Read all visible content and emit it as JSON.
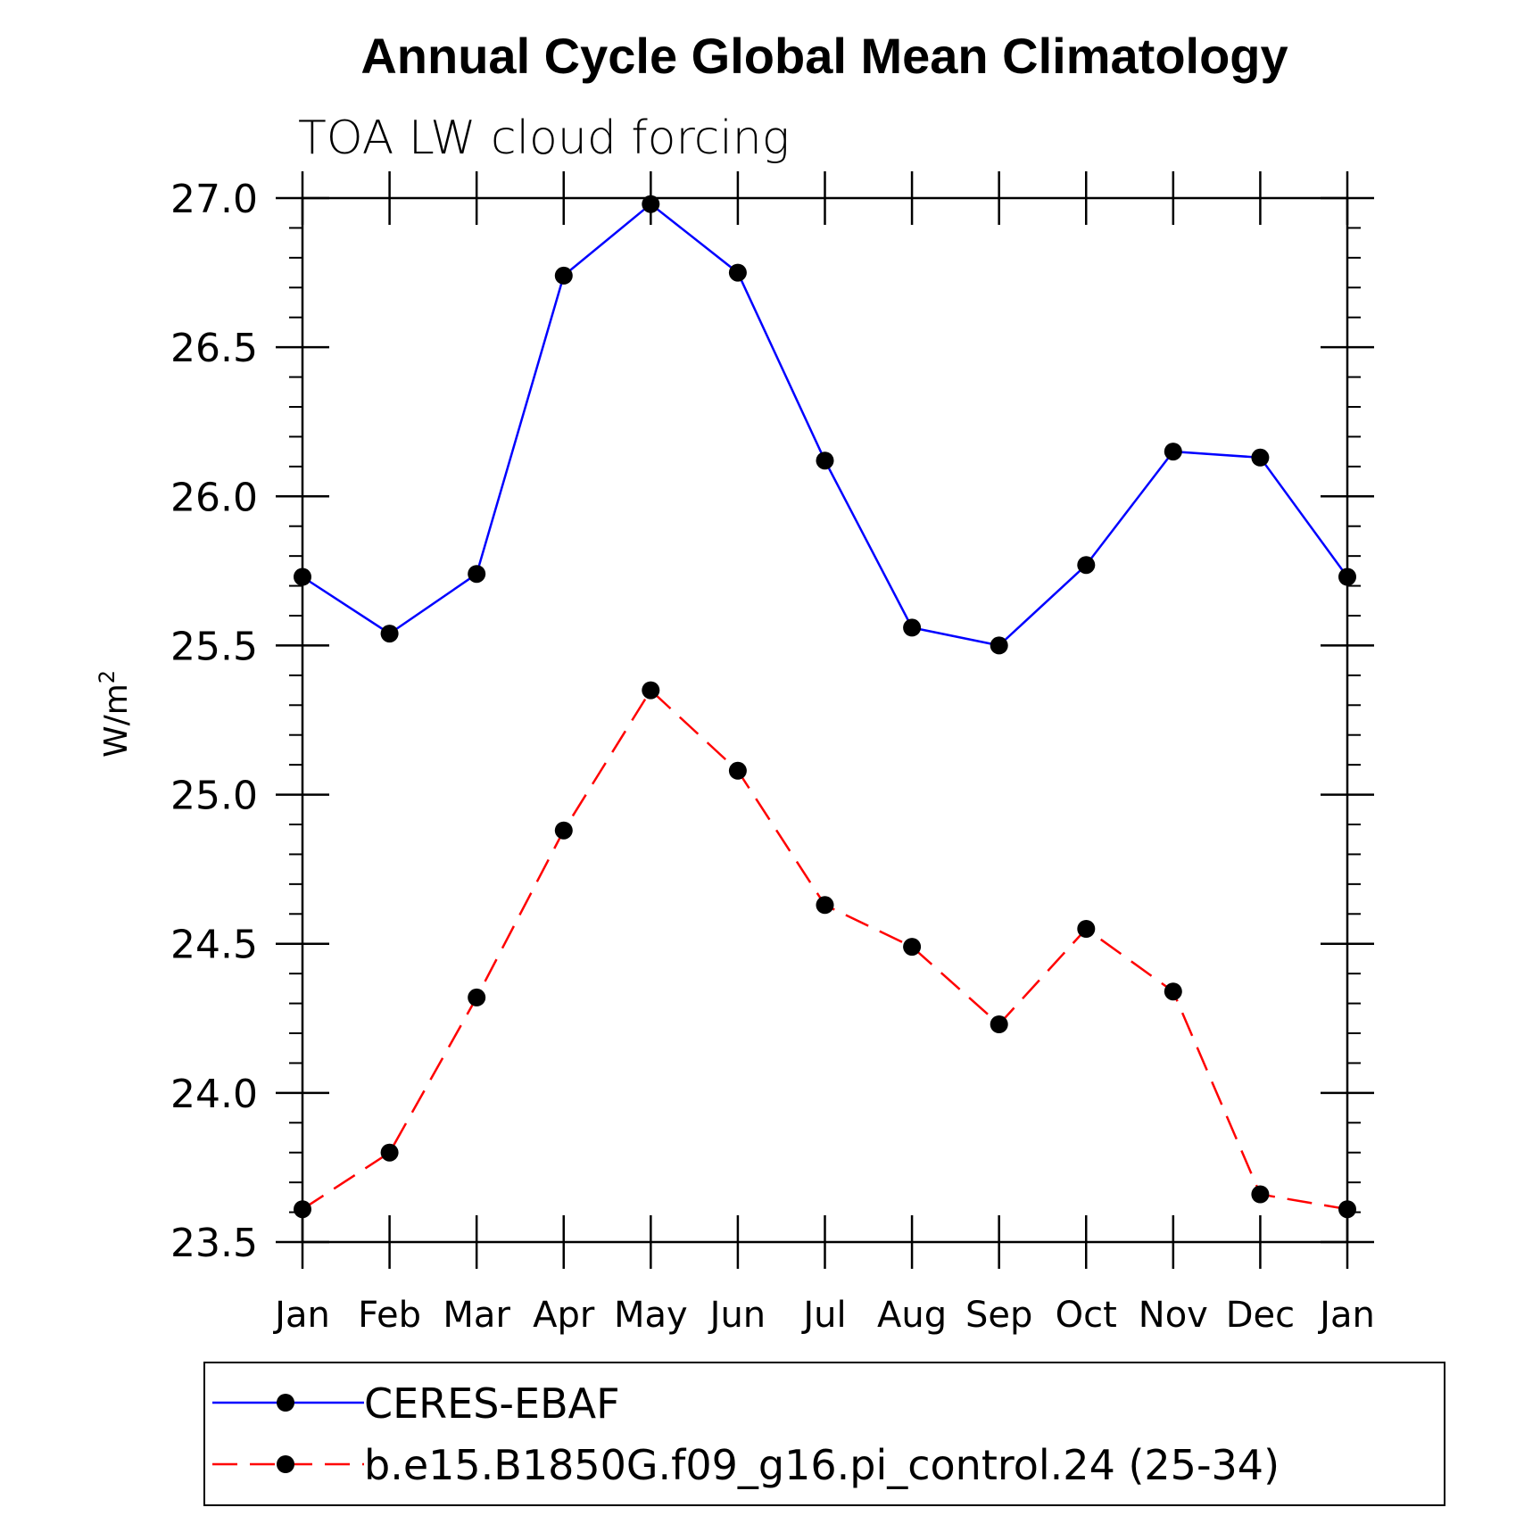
{
  "chart_data": {
    "type": "line",
    "title": "Annual Cycle Global Mean Climatology",
    "subtitle": "TOA LW cloud forcing",
    "ylabel": "W/m",
    "ylabel_sup": "2",
    "xlabel": "",
    "categories": [
      "Jan",
      "Feb",
      "Mar",
      "Apr",
      "May",
      "Jun",
      "Jul",
      "Aug",
      "Sep",
      "Oct",
      "Nov",
      "Dec",
      "Jan"
    ],
    "ylim": [
      23.5,
      27.0
    ],
    "yticks": [
      23.5,
      24.0,
      24.5,
      25.0,
      25.5,
      26.0,
      26.5,
      27.0
    ],
    "ytick_labels": [
      "23.5",
      "24.0",
      "24.5",
      "25.0",
      "25.5",
      "26.0",
      "26.5",
      "27.0"
    ],
    "grid": false,
    "legend_position": "bottom",
    "series": [
      {
        "name": "CERES-EBAF",
        "color": "#0000ff",
        "dash": "solid",
        "values": [
          25.73,
          25.54,
          25.74,
          26.74,
          26.98,
          26.75,
          26.12,
          25.56,
          25.5,
          25.77,
          26.15,
          26.13,
          25.73
        ]
      },
      {
        "name": "b.e15.B1850G.f09_g16.pi_control.24 (25-34)",
        "color": "#ff0000",
        "dash": "dashed",
        "values": [
          23.61,
          23.8,
          24.32,
          24.88,
          25.35,
          25.08,
          24.63,
          24.49,
          24.23,
          24.55,
          24.34,
          23.66,
          23.61
        ]
      }
    ]
  }
}
